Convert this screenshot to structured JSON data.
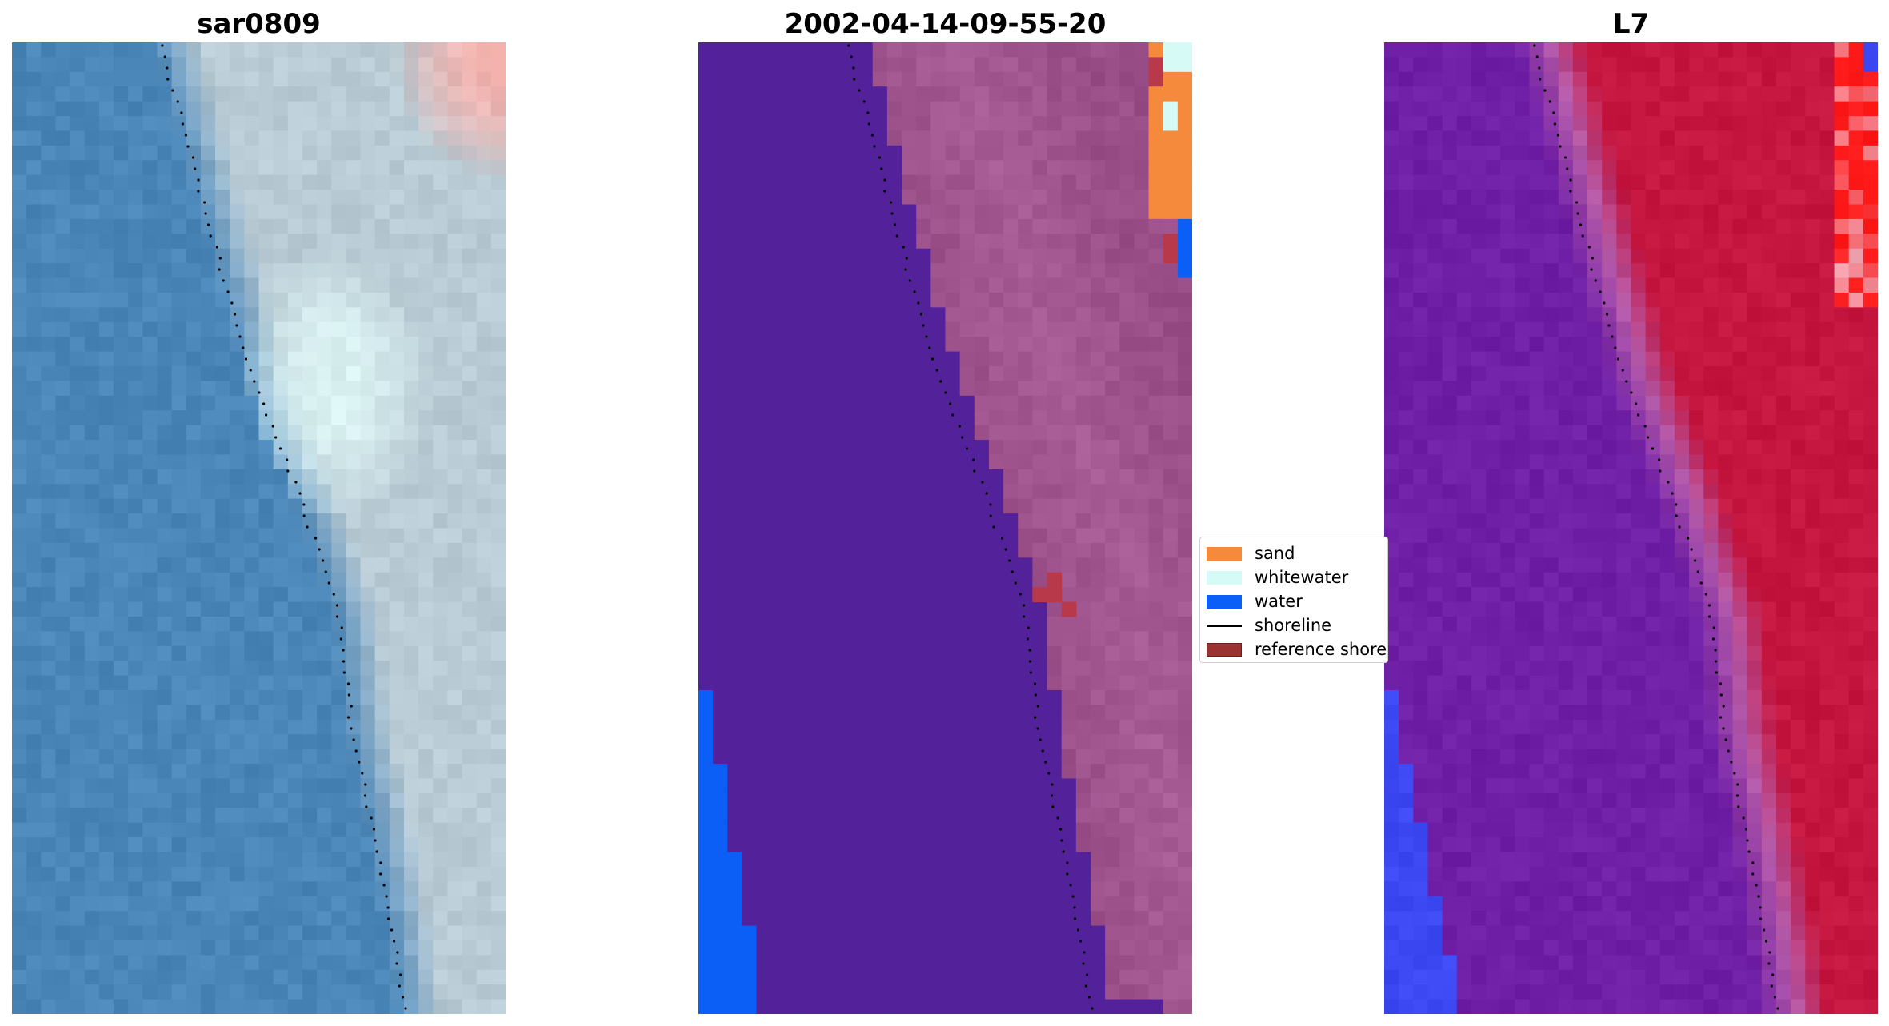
{
  "panels": [
    {
      "title": "sar0809"
    },
    {
      "title": "2002-04-14-09-55-20"
    },
    {
      "title": "L7"
    }
  ],
  "legend": {
    "items": [
      {
        "label": "sand",
        "color": "#f58a3c",
        "kind": "patch"
      },
      {
        "label": "whitewater",
        "color": "#d6fbf6",
        "kind": "patch"
      },
      {
        "label": "water",
        "color": "#0b5ef6",
        "kind": "patch"
      },
      {
        "label": "shoreline",
        "color": "#000000",
        "kind": "line"
      },
      {
        "label": "reference shoreline",
        "color": "#9b3232",
        "kind": "patch"
      }
    ]
  },
  "colors": {
    "rgb_water": "#4a86b8",
    "rgb_whitewater": "#dff7f6",
    "rgb_beach": "#b9cbd4",
    "rgb_sand_red": "#f7b3ae",
    "class_background": "#53229a",
    "class_land": "#9a4e88",
    "class_sand": "#f58a3c",
    "class_whitewater": "#d6fbf6",
    "class_water": "#0b5ef6",
    "class_reference": "#b83a4a",
    "l7_water": "#6f1fa6",
    "l7_land": "#c4163f",
    "l7_transition": "#b45aa8",
    "l7_blue": "#3c48f2",
    "l7_red": "#ff1a1a"
  }
}
